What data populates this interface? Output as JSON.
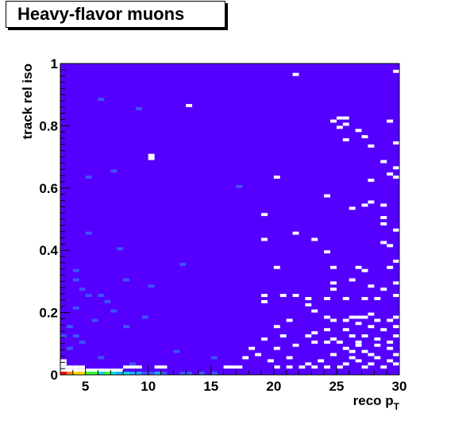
{
  "title": "Heavy-flavor muons",
  "chart_data": {
    "type": "heatmap",
    "title": "Heavy-flavor muons",
    "xlabel": "reco p",
    "xlabel_sub": "T",
    "ylabel": "track rel iso",
    "xlim": [
      3,
      30
    ],
    "ylim": [
      0,
      1
    ],
    "x_ticks": [
      "5",
      "10",
      "15",
      "20",
      "25",
      "30"
    ],
    "y_ticks": [
      "0",
      "0.2",
      "0.4",
      "0.6",
      "0.8",
      "1"
    ],
    "x_bin_width": 0.5,
    "y_bin_width": 0.01,
    "background_color": "#5500ff",
    "empty_color": "#ffffff",
    "colors": {
      "low": "#5500ff",
      "mid_low": "#3d55ff",
      "mid": "#22aaff",
      "cyan": "#00e0e0",
      "green": "#33ff33",
      "yellow": "#ffe000",
      "orange": "#ff8800",
      "red": "#ff0000"
    },
    "low_iso_row": [
      {
        "x": 3.0,
        "color": "#ff0000"
      },
      {
        "x": 3.5,
        "color": "#ff8800"
      },
      {
        "x": 4.0,
        "color": "#ffe000"
      },
      {
        "x": 4.5,
        "color": "#ffe000"
      },
      {
        "x": 5.0,
        "color": "#33ff33"
      },
      {
        "x": 5.5,
        "color": "#33ff33"
      },
      {
        "x": 6.0,
        "color": "#00e0e0"
      },
      {
        "x": 6.5,
        "color": "#33ff33"
      },
      {
        "x": 7.0,
        "color": "#00e0e0"
      },
      {
        "x": 7.5,
        "color": "#22aaff"
      },
      {
        "x": 8.0,
        "color": "#00e0e0"
      },
      {
        "x": 8.5,
        "color": "#22aaff"
      },
      {
        "x": 9.0,
        "color": "#22aaff"
      },
      {
        "x": 9.5,
        "color": "#3d55ff"
      },
      {
        "x": 10.0,
        "color": "#3d55ff"
      },
      {
        "x": 10.5,
        "color": "#22aaff"
      },
      {
        "x": 11.0,
        "color": "#3d55ff"
      },
      {
        "x": 12.5,
        "color": "#3d55ff"
      },
      {
        "x": 13.0,
        "color": "#3d55ff"
      },
      {
        "x": 14.0,
        "color": "#3d55ff"
      },
      {
        "x": 15.0,
        "color": "#3d55ff"
      }
    ],
    "empty_cells": [
      [
        3.0,
        0.01
      ],
      [
        3.5,
        0.01
      ],
      [
        4.0,
        0.01
      ],
      [
        4.5,
        0.01
      ],
      [
        5.0,
        0.01
      ],
      [
        5.5,
        0.01
      ],
      [
        6.0,
        0.01
      ],
      [
        6.5,
        0.01
      ],
      [
        7.0,
        0.01
      ],
      [
        7.5,
        0.01
      ],
      [
        3.0,
        0.02
      ],
      [
        3.5,
        0.02
      ],
      [
        3.0,
        0.03
      ],
      [
        3.0,
        0.04
      ],
      [
        4.0,
        0.02
      ],
      [
        4.5,
        0.02
      ],
      [
        8.0,
        0.02
      ],
      [
        8.5,
        0.02
      ],
      [
        9.0,
        0.02
      ],
      [
        10.5,
        0.02
      ],
      [
        11.0,
        0.02
      ],
      [
        16.0,
        0.02
      ],
      [
        16.5,
        0.02
      ],
      [
        17.0,
        0.02
      ],
      [
        19.5,
        0.04
      ],
      [
        20.0,
        0.02
      ],
      [
        21.0,
        0.02
      ],
      [
        22.0,
        0.02
      ],
      [
        22.5,
        0.03
      ],
      [
        23.0,
        0.02
      ],
      [
        23.5,
        0.04
      ],
      [
        24.0,
        0.02
      ],
      [
        25.0,
        0.02
      ],
      [
        25.5,
        0.03
      ],
      [
        26.0,
        0.05
      ],
      [
        26.5,
        0.04
      ],
      [
        27.0,
        0.02
      ],
      [
        27.5,
        0.03
      ],
      [
        28.0,
        0.05
      ],
      [
        28.5,
        0.02
      ],
      [
        29.0,
        0.04
      ],
      [
        29.5,
        0.03
      ],
      [
        24.5,
        0.06
      ],
      [
        25.5,
        0.08
      ],
      [
        26.0,
        0.07
      ],
      [
        26.5,
        0.09
      ],
      [
        27.0,
        0.07
      ],
      [
        27.5,
        0.06
      ],
      [
        28.0,
        0.09
      ],
      [
        29.0,
        0.08
      ],
      [
        29.5,
        0.06
      ],
      [
        24.0,
        0.1
      ],
      [
        24.5,
        0.11
      ],
      [
        25.0,
        0.1
      ],
      [
        26.0,
        0.12
      ],
      [
        26.5,
        0.1
      ],
      [
        27.0,
        0.12
      ],
      [
        28.0,
        0.11
      ],
      [
        29.0,
        0.1
      ],
      [
        29.5,
        0.12
      ],
      [
        23.0,
        0.13
      ],
      [
        24.0,
        0.14
      ],
      [
        25.5,
        0.14
      ],
      [
        26.5,
        0.16
      ],
      [
        27.5,
        0.15
      ],
      [
        28.5,
        0.14
      ],
      [
        29.5,
        0.15
      ],
      [
        20.0,
        0.08
      ],
      [
        20.5,
        0.12
      ],
      [
        21.0,
        0.05
      ],
      [
        21.5,
        0.09
      ],
      [
        22.5,
        0.12
      ],
      [
        23.0,
        0.1
      ],
      [
        19.0,
        0.11
      ],
      [
        18.5,
        0.06
      ],
      [
        17.5,
        0.05
      ],
      [
        18.0,
        0.08
      ],
      [
        25.5,
        0.17
      ],
      [
        26.0,
        0.18
      ],
      [
        26.5,
        0.18
      ],
      [
        27.0,
        0.18
      ],
      [
        27.5,
        0.19
      ],
      [
        28.0,
        0.17
      ],
      [
        29.0,
        0.17
      ],
      [
        29.5,
        0.18
      ],
      [
        24.0,
        0.18
      ],
      [
        24.5,
        0.17
      ],
      [
        23.0,
        0.2
      ],
      [
        22.5,
        0.22
      ],
      [
        21.0,
        0.17
      ],
      [
        20.0,
        0.15
      ],
      [
        19.0,
        0.23
      ],
      [
        19.0,
        0.25
      ],
      [
        20.5,
        0.25
      ],
      [
        21.5,
        0.25
      ],
      [
        22.5,
        0.24
      ],
      [
        24.0,
        0.24
      ],
      [
        25.5,
        0.24
      ],
      [
        27.0,
        0.24
      ],
      [
        28.0,
        0.24
      ],
      [
        29.5,
        0.25
      ],
      [
        24.5,
        0.27
      ],
      [
        27.5,
        0.28
      ],
      [
        28.5,
        0.27
      ],
      [
        24.5,
        0.29
      ],
      [
        26.0,
        0.3
      ],
      [
        29.5,
        0.29
      ],
      [
        20.0,
        0.34
      ],
      [
        24.5,
        0.34
      ],
      [
        26.5,
        0.34
      ],
      [
        27.0,
        0.33
      ],
      [
        29.0,
        0.34
      ],
      [
        29.5,
        0.36
      ],
      [
        24.0,
        0.39
      ],
      [
        29.0,
        0.41
      ],
      [
        19.0,
        0.43
      ],
      [
        23.0,
        0.43
      ],
      [
        28.5,
        0.42
      ],
      [
        21.5,
        0.45
      ],
      [
        29.5,
        0.46
      ],
      [
        28.5,
        0.48
      ],
      [
        28.5,
        0.5
      ],
      [
        19.0,
        0.51
      ],
      [
        26.0,
        0.53
      ],
      [
        24.0,
        0.57
      ],
      [
        27.5,
        0.55
      ],
      [
        27.0,
        0.54
      ],
      [
        28.5,
        0.54
      ],
      [
        27.5,
        0.62
      ],
      [
        29.5,
        0.63
      ],
      [
        20.0,
        0.63
      ],
      [
        29.5,
        0.66
      ],
      [
        29.0,
        0.64
      ],
      [
        10.0,
        0.69
      ],
      [
        10.0,
        0.7
      ],
      [
        28.5,
        0.68
      ],
      [
        29.5,
        0.74
      ],
      [
        27.5,
        0.73
      ],
      [
        25.5,
        0.75
      ],
      [
        27.0,
        0.76
      ],
      [
        26.5,
        0.78
      ],
      [
        25.0,
        0.79
      ],
      [
        25.5,
        0.8
      ],
      [
        25.0,
        0.82
      ],
      [
        25.5,
        0.82
      ],
      [
        29.0,
        0.81
      ],
      [
        13.0,
        0.86
      ],
      [
        24.5,
        0.81
      ],
      [
        21.5,
        0.96
      ],
      [
        29.5,
        0.97
      ]
    ],
    "darker_cells": [
      [
        4.0,
        0.33
      ],
      [
        4.0,
        0.3
      ],
      [
        4.5,
        0.27
      ],
      [
        5.0,
        0.25
      ],
      [
        6.0,
        0.25
      ],
      [
        3.5,
        0.15
      ],
      [
        3.0,
        0.12
      ],
      [
        4.0,
        0.12
      ],
      [
        3.5,
        0.08
      ],
      [
        6.5,
        0.23
      ],
      [
        7.0,
        0.2
      ],
      [
        8.0,
        0.15
      ],
      [
        5.5,
        0.17
      ],
      [
        9.5,
        0.18
      ],
      [
        4.5,
        0.1
      ],
      [
        8.5,
        0.03
      ],
      [
        6.0,
        0.05
      ],
      [
        6.0,
        0.88
      ],
      [
        5.0,
        0.63
      ],
      [
        7.5,
        0.4
      ],
      [
        8.0,
        0.3
      ],
      [
        10.0,
        0.28
      ],
      [
        12.0,
        0.07
      ],
      [
        15.0,
        0.05
      ],
      [
        17.0,
        0.6
      ],
      [
        4.0,
        0.21
      ],
      [
        5.0,
        0.45
      ],
      [
        9.0,
        0.85
      ],
      [
        7.0,
        0.65
      ],
      [
        12.5,
        0.35
      ]
    ]
  }
}
